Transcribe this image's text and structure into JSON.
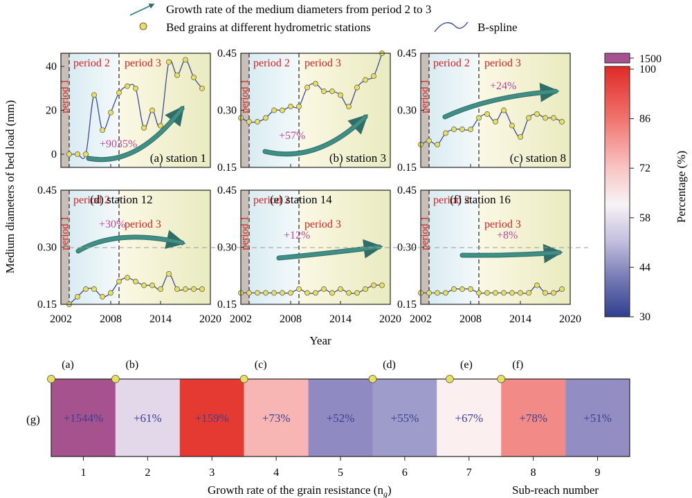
{
  "legend": {
    "arrow_label": "Growth rate of the medium diameters from period 2 to 3",
    "dot_label": "Bed grains at different hydrometric stations",
    "spline_label": "B-spline"
  },
  "colors": {
    "spline": "#3b4a9a",
    "dot_fill": "#e8e05a",
    "arrow": "#3f8f86",
    "period_label": "#d62020",
    "growth_label": "#b8489b",
    "period1_band": "#c8c0b8",
    "period2_band": "#e3f1f4",
    "period3_band": "#f2f0c8"
  },
  "y_axis_label": "Medium diameters of bed load (mm)",
  "x_axis_label": "Year",
  "colorbar": {
    "label": "Percentage (%)",
    "top_label": "1500",
    "ticks": [
      "100",
      "86",
      "72",
      "58",
      "44",
      "30"
    ],
    "range": [
      30,
      100
    ]
  },
  "chart_data": [
    {
      "type": "line",
      "panel": "a",
      "title": "(a) station 1",
      "x": [
        2003,
        2004,
        2005,
        2006,
        2007,
        2008,
        2009,
        2010,
        2011,
        2012,
        2013,
        2014,
        2015,
        2016,
        2017,
        2018,
        2019
      ],
      "y": [
        0,
        0,
        0,
        27,
        11,
        19,
        28,
        31,
        30,
        12,
        20,
        13,
        42,
        36,
        43,
        35,
        30
      ],
      "ylim": [
        -6,
        46
      ],
      "yticks": [
        "0",
        "20",
        "40"
      ],
      "xlim": [
        2002,
        2020
      ],
      "periods": [
        "period 1",
        "period 2",
        "period 3"
      ],
      "period_boundaries": [
        2003,
        2009
      ],
      "growth": "+9035%"
    },
    {
      "type": "line",
      "panel": "b",
      "title": "(b) station 3",
      "x": [
        2002,
        2003,
        2004,
        2005,
        2006,
        2007,
        2008,
        2009,
        2010,
        2011,
        2012,
        2013,
        2014,
        2015,
        2016,
        2017,
        2018,
        2019
      ],
      "y": [
        0.28,
        0.27,
        0.27,
        0.28,
        0.3,
        0.3,
        0.31,
        0.31,
        0.36,
        0.37,
        0.35,
        0.35,
        0.34,
        0.31,
        0.36,
        0.38,
        0.39,
        0.45
      ],
      "ylim": [
        0.15,
        0.45
      ],
      "yticks": [
        "0.45",
        "0.30",
        "0.15"
      ],
      "xlim": [
        2002,
        2020
      ],
      "periods": [
        "period 1",
        "period 2",
        "period 3"
      ],
      "period_boundaries": [
        2003,
        2009
      ],
      "growth": "+57%"
    },
    {
      "type": "line",
      "panel": "c",
      "title": "(c) station 8",
      "x": [
        2002,
        2003,
        2004,
        2005,
        2006,
        2007,
        2008,
        2009,
        2010,
        2011,
        2012,
        2013,
        2014,
        2015,
        2016,
        2017,
        2018,
        2019
      ],
      "y": [
        0.21,
        0.22,
        0.21,
        0.24,
        0.25,
        0.25,
        0.25,
        0.28,
        0.29,
        0.27,
        0.3,
        0.26,
        0.23,
        0.28,
        0.29,
        0.28,
        0.28,
        0.27
      ],
      "ylim": [
        0.15,
        0.45
      ],
      "yticks": [
        "0.45",
        "0.30",
        "0.15"
      ],
      "xlim": [
        2002,
        2020
      ],
      "periods": [
        "period 1",
        "period 2",
        "period 3"
      ],
      "period_boundaries": [
        2003,
        2009
      ],
      "growth": "+24%"
    },
    {
      "type": "line",
      "panel": "d",
      "title": "(d) station 12",
      "x": [
        2003,
        2004,
        2005,
        2006,
        2007,
        2008,
        2009,
        2010,
        2011,
        2012,
        2013,
        2014,
        2015,
        2016,
        2017,
        2018,
        2019
      ],
      "y": [
        0.15,
        0.17,
        0.19,
        0.19,
        0.17,
        0.18,
        0.21,
        0.22,
        0.21,
        0.2,
        0.2,
        0.19,
        0.23,
        0.19,
        0.19,
        0.19,
        0.19
      ],
      "ylim": [
        0.15,
        0.45
      ],
      "yticks": [
        "0.45",
        "0.30",
        "0.15"
      ],
      "xlim": [
        2002,
        2020
      ],
      "periods": [
        "period 1",
        "period 2",
        "period 3"
      ],
      "period_boundaries": [
        2003,
        2009
      ],
      "growth": "+30%"
    },
    {
      "type": "line",
      "panel": "e",
      "title": "(e) station 14",
      "x": [
        2002,
        2003,
        2004,
        2005,
        2006,
        2007,
        2008,
        2009,
        2010,
        2011,
        2012,
        2013,
        2014,
        2015,
        2016,
        2017,
        2018,
        2019
      ],
      "y": [
        0.18,
        0.18,
        0.18,
        0.18,
        0.18,
        0.18,
        0.18,
        0.19,
        0.18,
        0.18,
        0.19,
        0.18,
        0.19,
        0.18,
        0.18,
        0.19,
        0.2,
        0.2
      ],
      "ylim": [
        0.15,
        0.45
      ],
      "yticks": [
        "0.45",
        "0.30",
        "0.15"
      ],
      "xlim": [
        2002,
        2020
      ],
      "periods": [
        "period 1",
        "period 2",
        "period 3"
      ],
      "period_boundaries": [
        2003,
        2009
      ],
      "growth": "+12%"
    },
    {
      "type": "line",
      "panel": "f",
      "title": "(f) station 16",
      "x": [
        2002,
        2003,
        2004,
        2005,
        2006,
        2007,
        2008,
        2009,
        2010,
        2011,
        2012,
        2013,
        2014,
        2015,
        2016,
        2017,
        2018,
        2019
      ],
      "y": [
        0.18,
        0.18,
        0.18,
        0.18,
        0.19,
        0.19,
        0.19,
        0.18,
        0.18,
        0.18,
        0.18,
        0.18,
        0.18,
        0.18,
        0.2,
        0.18,
        0.18,
        0.19
      ],
      "ylim": [
        0.15,
        0.45
      ],
      "yticks": [
        "0.45",
        "0.30",
        "0.15"
      ],
      "xlim": [
        2002,
        2020
      ],
      "periods": [
        "period 1",
        "period 2",
        "period 3"
      ],
      "period_boundaries": [
        2003,
        2009
      ],
      "growth": "+8%"
    },
    {
      "type": "heatmap",
      "panel": "g",
      "label": "(g)",
      "xlabel": "Growth rate of the grain resistance (n",
      "xlabel_sub": "g",
      "xlabel_tail": ")",
      "xlabel_right": "Sub-reach number",
      "categories": [
        "1",
        "2",
        "3",
        "4",
        "5",
        "6",
        "7",
        "8",
        "9"
      ],
      "values": [
        1544,
        61,
        159,
        73,
        52,
        55,
        67,
        78,
        51
      ],
      "labels": [
        "+1544%",
        "+61%",
        "+159%",
        "+73%",
        "+52%",
        "+55%",
        "+67%",
        "+78%",
        "+51%"
      ],
      "colors": [
        "#a5528e",
        "#e2d8ea",
        "#e43a32",
        "#f7b6b3",
        "#8f8ac2",
        "#9e9ccb",
        "#fcefef",
        "#f28b88",
        "#928dc3"
      ],
      "station_markers": [
        {
          "label": "(a)",
          "position": 0.0
        },
        {
          "label": "(b)",
          "position": 1.0
        },
        {
          "label": "(c)",
          "position": 3.0
        },
        {
          "label": "(d)",
          "position": 5.0
        },
        {
          "label": "(e)",
          "position": 6.2
        },
        {
          "label": "(f)",
          "position": 7.0
        }
      ]
    }
  ]
}
